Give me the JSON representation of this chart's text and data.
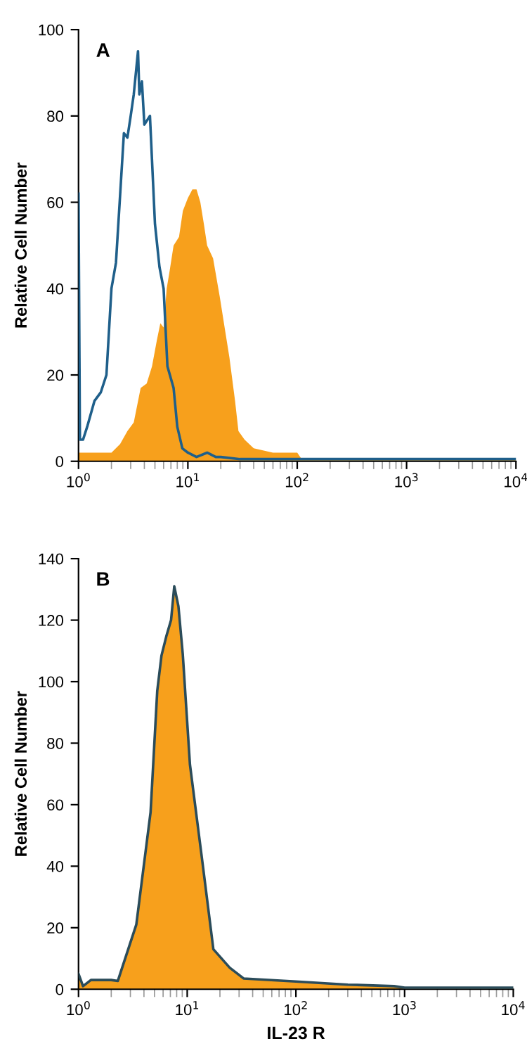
{
  "chart_data": [
    {
      "type": "area",
      "title": "A",
      "ylabel": "Relative Cell Number",
      "log": "x",
      "xlim": [
        1,
        10000
      ],
      "ylim": [
        0,
        100
      ],
      "xticks": [
        {
          "value": 1,
          "label": "10$^{0}$"
        },
        {
          "value": 10,
          "label": "10$^{1}$"
        },
        {
          "value": 100,
          "label": "10$^{2}$"
        },
        {
          "value": 1000,
          "label": "10$^{3}$"
        },
        {
          "value": 10000,
          "label": "10$^{4}$"
        }
      ],
      "yticks": [
        0,
        20,
        40,
        60,
        80,
        100
      ],
      "series": [
        {
          "color": "#f7a01c",
          "x": [
            1,
            2,
            2.4,
            2.8,
            3.2,
            3.7,
            4.2,
            4.7,
            5.2,
            5.6,
            6.0,
            6.4,
            6.8,
            7.4,
            8.3,
            9.0,
            10,
            11,
            12,
            13,
            14,
            15,
            17,
            19.6,
            22,
            24,
            27,
            29,
            33,
            40,
            60,
            100,
            110,
            10000
          ],
          "values": [
            2,
            2,
            4,
            7,
            9,
            17,
            18,
            22,
            28,
            32,
            31,
            40,
            44,
            50,
            52,
            58,
            61,
            63,
            63,
            60,
            55,
            50,
            47,
            38,
            30,
            24,
            14,
            7,
            5,
            3,
            2,
            2,
            0.5,
            0.5
          ]
        },
        {
          "type": "line",
          "color": "#1f5f8a",
          "x": [
            1.0,
            1.03,
            1.1,
            1.2,
            1.4,
            1.6,
            1.8,
            2.0,
            2.2,
            2.6,
            2.8,
            3.0,
            3.2,
            3.5,
            3.6,
            3.8,
            4.0,
            4.5,
            5.0,
            5.5,
            6.0,
            6.5,
            7.4,
            8.0,
            8.9,
            10,
            12,
            15,
            18,
            20,
            30,
            100,
            10000
          ],
          "values": [
            62,
            5,
            5,
            8,
            14,
            16,
            20,
            40,
            46,
            76,
            75,
            80,
            85,
            95,
            85,
            88,
            78,
            80,
            55,
            45,
            40,
            22,
            17,
            8,
            3,
            2,
            1,
            2,
            1,
            1,
            0.5,
            0.5,
            0.5
          ]
        }
      ]
    },
    {
      "type": "area",
      "title": "B",
      "ylabel": "Relative Cell Number",
      "xlabel": "IL-23 R",
      "log": "x",
      "xlim": [
        1,
        10000
      ],
      "ylim": [
        0,
        140
      ],
      "xticks": [
        {
          "value": 1,
          "label": "10$^{0}$"
        },
        {
          "value": 10,
          "label": "10$^{1}$"
        },
        {
          "value": 100,
          "label": "10$^{2}$"
        },
        {
          "value": 1000,
          "label": "10$^{3}$"
        },
        {
          "value": 10000,
          "label": "10$^{4}$"
        }
      ],
      "yticks": [
        0,
        20,
        40,
        60,
        80,
        100,
        120,
        140
      ],
      "series": [
        {
          "color": "#f7a01c",
          "x": [
            1.0,
            1.1,
            1.3,
            2.0,
            2.3,
            3.4,
            4.6,
            5.3,
            5.8,
            6.45,
            7.1,
            7.6,
            8.3,
            9.1,
            10.6,
            13.5,
            17.4,
            24.6,
            33,
            100,
            300,
            800,
            1000,
            10000
          ],
          "values": [
            5,
            1,
            3,
            3,
            2.7,
            21,
            57.5,
            97,
            108.5,
            115,
            120,
            131,
            124.5,
            109,
            73,
            44,
            13,
            7,
            3.5,
            2.5,
            1.5,
            1,
            0.5,
            0.5
          ]
        },
        {
          "type": "line",
          "color": "#2b4c5a",
          "x": [
            1.0,
            1.1,
            1.3,
            2.0,
            2.3,
            3.4,
            4.6,
            5.3,
            5.8,
            6.45,
            7.1,
            7.6,
            8.3,
            9.1,
            10.6,
            13.5,
            17.4,
            24.6,
            33,
            100,
            300,
            800,
            1000,
            10000
          ],
          "values": [
            5,
            1,
            3,
            3,
            2.7,
            21,
            57.5,
            97,
            108.5,
            115,
            120,
            131,
            124.5,
            109,
            73,
            44,
            13,
            7,
            3.5,
            2.5,
            1.5,
            1,
            0.5,
            0.5
          ]
        }
      ]
    }
  ]
}
